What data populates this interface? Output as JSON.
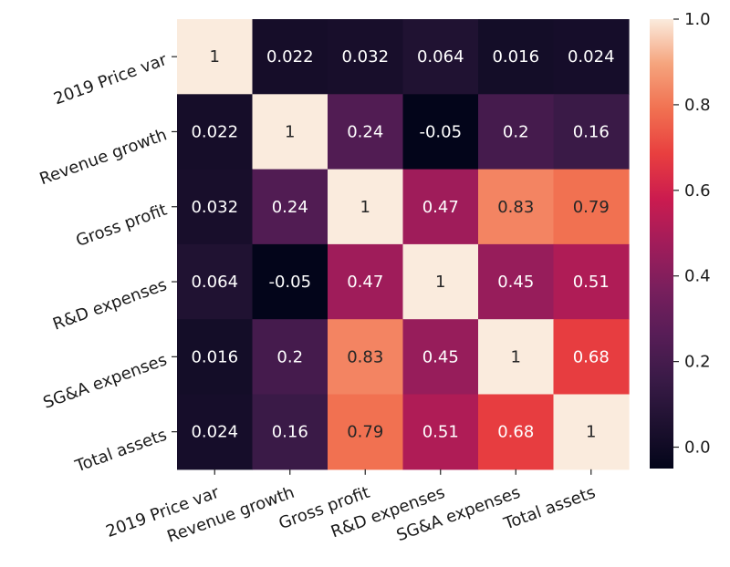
{
  "chart_data": {
    "type": "heatmap",
    "row_labels": [
      "2019 Price var",
      "Revenue growth",
      "Gross profit",
      "R&D expenses",
      "SG&A expenses",
      "Total assets"
    ],
    "col_labels": [
      "2019 Price var",
      "Revenue growth",
      "Gross profit",
      "R&D expenses",
      "SG&A expenses",
      "Total assets"
    ],
    "values": [
      [
        1,
        0.022,
        0.032,
        0.064,
        0.016,
        0.024
      ],
      [
        0.022,
        1,
        0.24,
        -0.05,
        0.2,
        0.16
      ],
      [
        0.032,
        0.24,
        1,
        0.47,
        0.83,
        0.79
      ],
      [
        0.064,
        -0.05,
        0.47,
        1,
        0.45,
        0.51
      ],
      [
        0.016,
        0.2,
        0.83,
        0.45,
        1,
        0.68
      ],
      [
        0.024,
        0.16,
        0.79,
        0.51,
        0.68,
        1
      ]
    ],
    "cell_text": [
      [
        "1",
        "0.022",
        "0.032",
        "0.064",
        "0.016",
        "0.024"
      ],
      [
        "0.022",
        "1",
        "0.24",
        "-0.05",
        "0.2",
        "0.16"
      ],
      [
        "0.032",
        "0.24",
        "1",
        "0.47",
        "0.83",
        "0.79"
      ],
      [
        "0.064",
        "-0.05",
        "0.47",
        "1",
        "0.45",
        "0.51"
      ],
      [
        "0.016",
        "0.2",
        "0.83",
        "0.45",
        "1",
        "0.68"
      ],
      [
        "0.024",
        "0.16",
        "0.79",
        "0.51",
        "0.68",
        "1"
      ]
    ],
    "colormap": "rocket",
    "vmin": -0.05,
    "vmax": 1.0,
    "colorbar": {
      "ticks": [
        0.0,
        0.2,
        0.4,
        0.6,
        0.8,
        1.0
      ],
      "tick_labels": [
        "0.0",
        "0.2",
        "0.4",
        "0.6",
        "0.8",
        "1.0"
      ],
      "position": "right"
    },
    "title": "",
    "xlabel": "",
    "ylabel": ""
  }
}
